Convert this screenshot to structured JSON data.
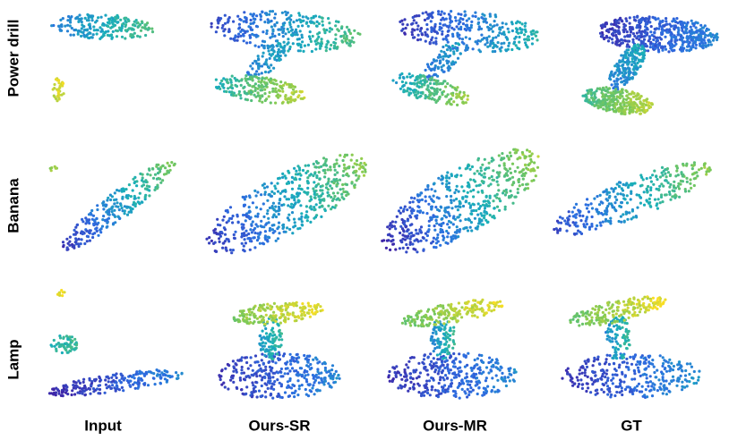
{
  "row_labels": [
    "Power drill",
    "Banana",
    "Lamp"
  ],
  "column_labels": [
    "Input",
    "Ours-SR",
    "Ours-MR",
    "GT"
  ]
}
